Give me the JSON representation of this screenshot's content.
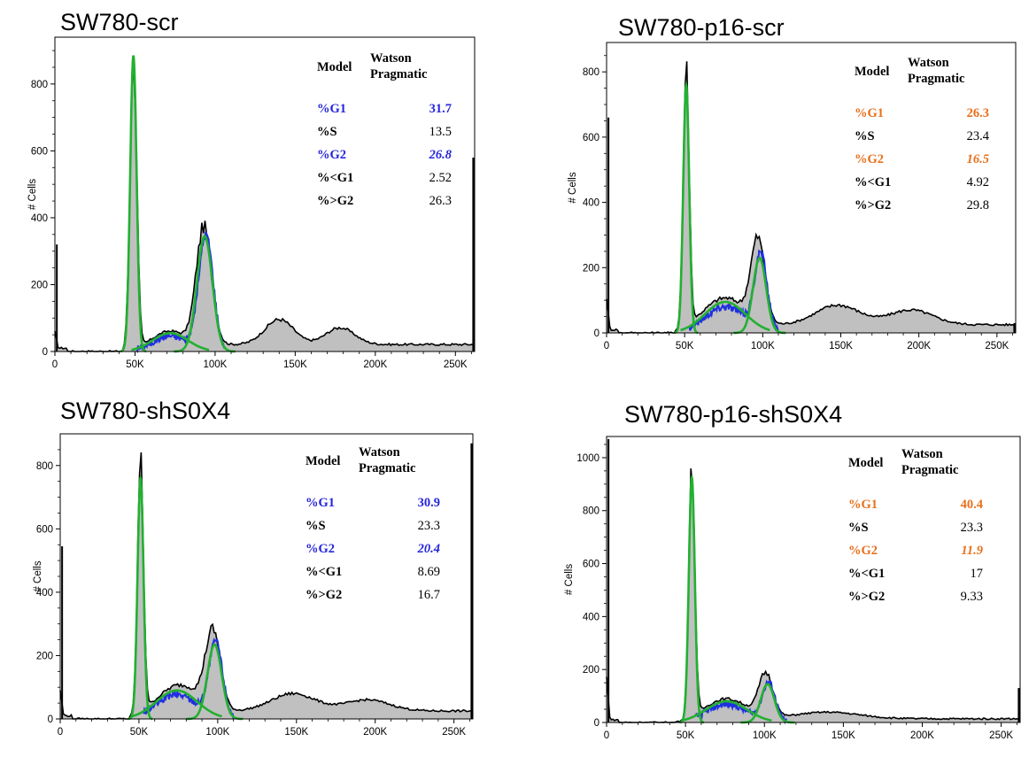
{
  "colors": {
    "fill": "#c0c0c0",
    "hist": "#000000",
    "fit_green": "#22b030",
    "fit_blue": "#1f30e0",
    "accent_blue": "#2525dc",
    "accent_orange": "#e8701c"
  },
  "chart_data": [
    {
      "type": "area",
      "title": "SW780-scr",
      "ylabel": "# Cells",
      "xlim": [
        0,
        262000
      ],
      "ylim": [
        0,
        940
      ],
      "x_ticks": [
        0,
        50000,
        100000,
        150000,
        200000,
        250000
      ],
      "x_tick_labels": [
        "0",
        "50K",
        "100K",
        "150K",
        "200K",
        "250K"
      ],
      "y_ticks": [
        0,
        200,
        400,
        600,
        800
      ],
      "y_tick_labels": [
        "0",
        "200",
        "400",
        "600",
        "800"
      ],
      "accent_color": "#2525dc",
      "stats": {
        "model_label": "Model",
        "model_value": [
          "Watson",
          "Pragmatic"
        ],
        "rows": [
          {
            "label": "%G1",
            "value": "31.7",
            "highlight": true,
            "italic_value": false
          },
          {
            "label": "%S",
            "value": "13.5",
            "highlight": false,
            "italic_value": false
          },
          {
            "label": "%G2",
            "value": "26.8",
            "highlight": true,
            "italic_value": true
          },
          {
            "label": "%<G1",
            "value": "2.52",
            "highlight": false,
            "italic_value": false
          },
          {
            "label": "%>G2",
            "value": "26.3",
            "highlight": false,
            "italic_value": false
          }
        ]
      },
      "histogram": {
        "low_spike": 320,
        "end_spike": 580,
        "g1_peak": {
          "x": 49000,
          "height": 870,
          "sd": 2100
        },
        "g2_peak": {
          "x": 93000,
          "height": 360,
          "sd": 4800
        },
        "s_plateau": {
          "center": 72000,
          "height": 55,
          "sd": 11000
        },
        "tail_bumps": [
          {
            "x": 140000,
            "height": 75,
            "sd": 9000
          },
          {
            "x": 178000,
            "height": 50,
            "sd": 9000
          }
        ],
        "baseline": 15
      },
      "fit_g1": {
        "x": 49000,
        "height": 885,
        "sd": 2000
      },
      "fit_g2": {
        "x": 93500,
        "height": 345,
        "sd": 4800
      },
      "fit_s": {
        "center": 72000,
        "height": 55,
        "sd": 11000
      }
    },
    {
      "type": "area",
      "title": "SW780-p16-scr",
      "ylabel": "# Cells",
      "xlim": [
        0,
        262000
      ],
      "ylim": [
        0,
        890
      ],
      "x_ticks": [
        0,
        50000,
        100000,
        150000,
        200000,
        250000
      ],
      "x_tick_labels": [
        "0",
        "50K",
        "100K",
        "150K",
        "200K",
        "250K"
      ],
      "y_ticks": [
        0,
        200,
        400,
        600,
        800
      ],
      "y_tick_labels": [
        "0",
        "200",
        "400",
        "600",
        "800"
      ],
      "accent_color": "#e8701c",
      "stats": {
        "model_label": "Model",
        "model_value": [
          "Watson",
          "Pragmatic"
        ],
        "rows": [
          {
            "label": "%G1",
            "value": "26.3",
            "highlight": true,
            "italic_value": false
          },
          {
            "label": "%S",
            "value": "23.4",
            "highlight": false,
            "italic_value": false
          },
          {
            "label": "%G2",
            "value": "16.5",
            "highlight": true,
            "italic_value": true
          },
          {
            "label": "%<G1",
            "value": "4.92",
            "highlight": false,
            "italic_value": false
          },
          {
            "label": "%>G2",
            "value": "29.8",
            "highlight": false,
            "italic_value": false
          }
        ]
      },
      "histogram": {
        "low_spike": 660,
        "end_spike": 30,
        "g1_peak": {
          "x": 51000,
          "height": 790,
          "sd": 1900
        },
        "g2_peak": {
          "x": 97000,
          "height": 255,
          "sd": 4500
        },
        "s_plateau": {
          "center": 76000,
          "height": 100,
          "sd": 14000
        },
        "tail_bumps": [
          {
            "x": 148000,
            "height": 60,
            "sd": 14000
          },
          {
            "x": 195000,
            "height": 45,
            "sd": 14000
          }
        ],
        "baseline": 18
      },
      "fit_g1": {
        "x": 51000,
        "height": 760,
        "sd": 1900
      },
      "fit_g2": {
        "x": 98000,
        "height": 230,
        "sd": 4200
      },
      "fit_s": {
        "center": 76000,
        "height": 95,
        "sd": 13000
      }
    },
    {
      "type": "area",
      "title": "SW780-shS0X4",
      "ylabel": "# Cells",
      "xlim": [
        0,
        262000
      ],
      "ylim": [
        0,
        900
      ],
      "x_ticks": [
        0,
        50000,
        100000,
        150000,
        200000,
        250000
      ],
      "x_tick_labels": [
        "0",
        "50K",
        "100K",
        "150K",
        "200K",
        "250K"
      ],
      "y_ticks": [
        0,
        200,
        400,
        600,
        800
      ],
      "y_tick_labels": [
        "0",
        "200",
        "400",
        "600",
        "800"
      ],
      "accent_color": "#2525dc",
      "stats": {
        "model_label": "Model",
        "model_value": [
          "Watson",
          "Pragmatic"
        ],
        "rows": [
          {
            "label": "%G1",
            "value": "30.9",
            "highlight": true,
            "italic_value": false
          },
          {
            "label": "%S",
            "value": "23.3",
            "highlight": false,
            "italic_value": false
          },
          {
            "label": "%G2",
            "value": "20.4",
            "highlight": true,
            "italic_value": true
          },
          {
            "label": "%<G1",
            "value": "8.69",
            "highlight": false,
            "italic_value": false
          },
          {
            "label": "%>G2",
            "value": "16.7",
            "highlight": false,
            "italic_value": false
          }
        ]
      },
      "histogram": {
        "low_spike": 545,
        "end_spike": 870,
        "g1_peak": {
          "x": 51000,
          "height": 790,
          "sd": 1900
        },
        "g2_peak": {
          "x": 97000,
          "height": 245,
          "sd": 4800
        },
        "s_plateau": {
          "center": 76000,
          "height": 100,
          "sd": 14000
        },
        "tail_bumps": [
          {
            "x": 148000,
            "height": 55,
            "sd": 14000
          },
          {
            "x": 195000,
            "height": 35,
            "sd": 14000
          }
        ],
        "baseline": 18
      },
      "fit_g1": {
        "x": 51000,
        "height": 760,
        "sd": 1900
      },
      "fit_g2": {
        "x": 98000,
        "height": 235,
        "sd": 4500
      },
      "fit_s": {
        "center": 74000,
        "height": 90,
        "sd": 13000
      }
    },
    {
      "type": "area",
      "title": "SW780-p16-shS0X4",
      "ylabel": "# Cells",
      "xlim": [
        0,
        262000
      ],
      "ylim": [
        0,
        1080
      ],
      "x_ticks": [
        0,
        50000,
        100000,
        150000,
        200000,
        250000
      ],
      "x_tick_labels": [
        "0",
        "50K",
        "100K",
        "150K",
        "200K",
        "250K"
      ],
      "y_ticks": [
        0,
        200,
        400,
        600,
        800,
        1000
      ],
      "y_tick_labels": [
        "0",
        "200",
        "400",
        "600",
        "800",
        "1000"
      ],
      "accent_color": "#e8701c",
      "stats": {
        "model_label": "Model",
        "model_value": [
          "Watson",
          "Pragmatic"
        ],
        "rows": [
          {
            "label": "%G1",
            "value": "40.4",
            "highlight": true,
            "italic_value": false
          },
          {
            "label": "%S",
            "value": "23.3",
            "highlight": false,
            "italic_value": false
          },
          {
            "label": "%G2",
            "value": "11.9",
            "highlight": true,
            "italic_value": true
          },
          {
            "label": "%<G1",
            "value": "17",
            "highlight": false,
            "italic_value": false
          },
          {
            "label": "%>G2",
            "value": "9.33",
            "highlight": false,
            "italic_value": false
          }
        ]
      },
      "histogram": {
        "low_spike": 1070,
        "end_spike": 130,
        "g1_peak": {
          "x": 54000,
          "height": 935,
          "sd": 1900
        },
        "g2_peak": {
          "x": 101000,
          "height": 165,
          "sd": 4500
        },
        "s_plateau": {
          "center": 76000,
          "height": 85,
          "sd": 14000
        },
        "tail_bumps": [
          {
            "x": 140000,
            "height": 25,
            "sd": 20000
          }
        ],
        "baseline": 10
      },
      "fit_g1": {
        "x": 54000,
        "height": 925,
        "sd": 1900
      },
      "fit_g2": {
        "x": 102000,
        "height": 145,
        "sd": 4300
      },
      "fit_s": {
        "center": 76000,
        "height": 80,
        "sd": 13000
      }
    }
  ]
}
